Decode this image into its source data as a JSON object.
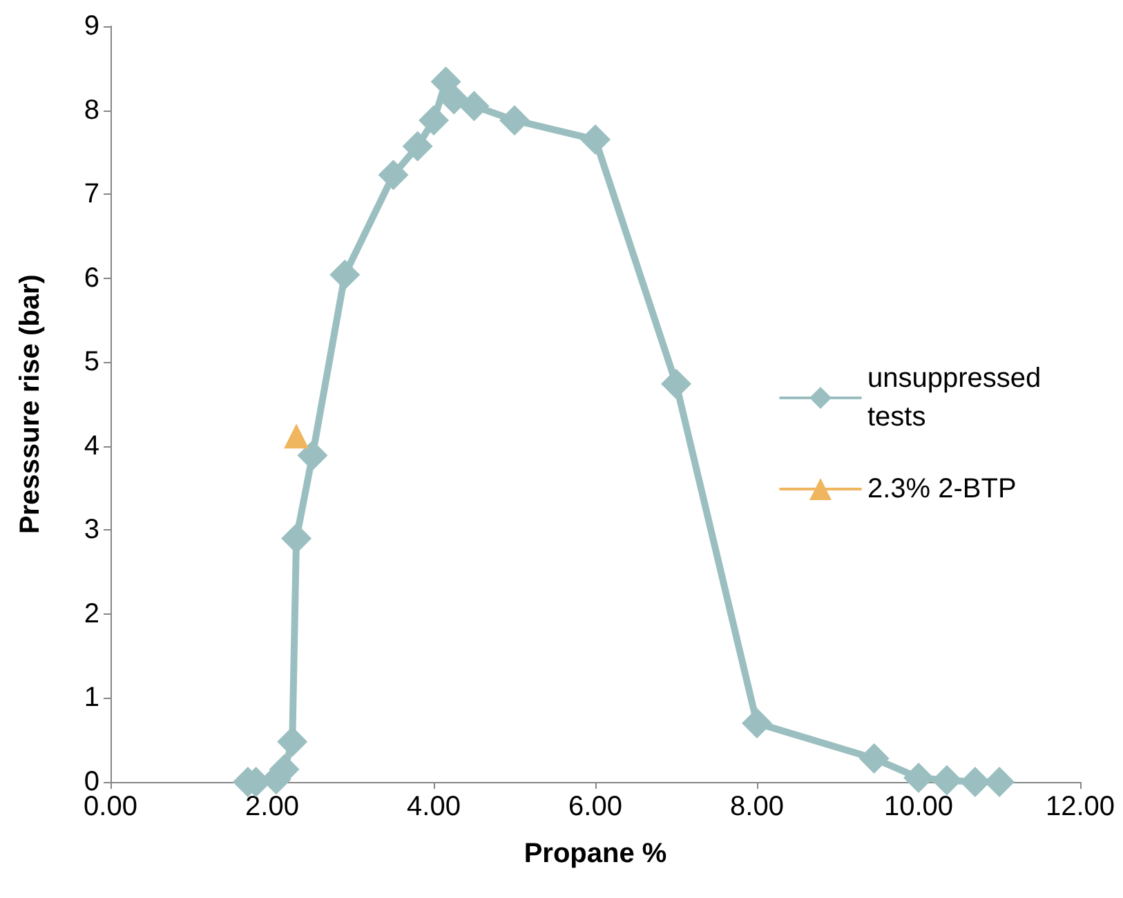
{
  "chart_data": {
    "type": "line",
    "xlabel": "Propane %",
    "ylabel": "Presssure rise (bar)",
    "xlim": [
      0,
      12
    ],
    "ylim": [
      0,
      9
    ],
    "xticks": [
      {
        "value": 0,
        "label": "0.00"
      },
      {
        "value": 2,
        "label": "2.00"
      },
      {
        "value": 4,
        "label": "4.00"
      },
      {
        "value": 6,
        "label": "6.00"
      },
      {
        "value": 8,
        "label": "8.00"
      },
      {
        "value": 10,
        "label": "10.00"
      },
      {
        "value": 12,
        "label": "12.00"
      }
    ],
    "yticks": [
      0,
      1,
      2,
      3,
      4,
      5,
      6,
      7,
      8,
      9
    ],
    "grid": false,
    "legend": "right",
    "marker": "diamond",
    "line_style": "solid",
    "series": [
      {
        "name": "unsuppressed tests",
        "color": "#9bbfc0",
        "x": [
          1.7,
          1.8,
          2.05,
          2.15,
          2.25,
          2.3,
          2.5,
          2.9,
          3.5,
          3.8,
          4.0,
          4.15,
          4.25,
          4.5,
          5.0,
          6.0,
          7.0,
          8.0,
          9.45,
          10.0,
          10.35,
          10.7,
          11.0
        ],
        "values": [
          0,
          0,
          0.03,
          0.15,
          0.48,
          2.9,
          3.89,
          6.04,
          7.23,
          7.57,
          7.88,
          8.34,
          8.13,
          8.05,
          7.88,
          7.65,
          4.74,
          0.7,
          0.28,
          0.05,
          0.02,
          0,
          0
        ]
      },
      {
        "name": "2.3% 2-BTP",
        "color": "#f0b55f",
        "marker": "triangle",
        "x": [
          2.3
        ],
        "values": [
          4.12
        ]
      }
    ]
  }
}
